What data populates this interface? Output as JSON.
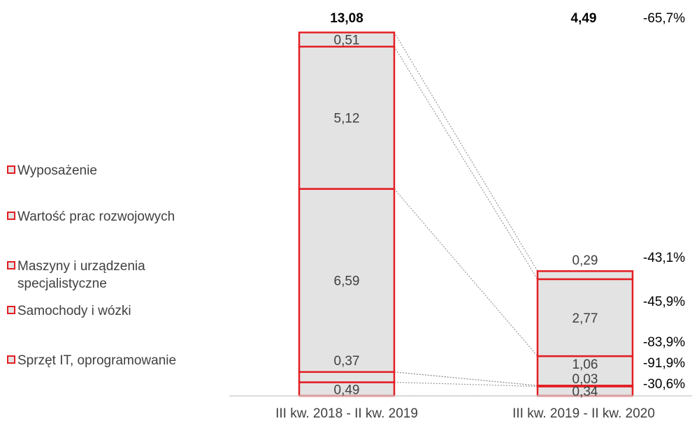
{
  "chart_data": {
    "type": "bar",
    "stacked": true,
    "categories": [
      "III kw. 2018 - II kw. 2019",
      "III kw. 2019 - II kw. 2020"
    ],
    "series": [
      {
        "name": "Sprzęt IT, oprogramowanie",
        "values": [
          0.49,
          0.34
        ],
        "labels": [
          "0,49",
          "0,34"
        ]
      },
      {
        "name": "Samochody i wózki",
        "values": [
          0.37,
          0.03
        ],
        "labels": [
          "0,37",
          "0,03"
        ]
      },
      {
        "name": "Maszyny i urządzenia specjalistyczne",
        "values": [
          6.59,
          1.06
        ],
        "labels": [
          "6,59",
          "1,06"
        ]
      },
      {
        "name": "Wartość prac rozwojowych",
        "values": [
          5.12,
          2.77
        ],
        "labels": [
          "5,12",
          "2,77"
        ]
      },
      {
        "name": "Wyposażenie",
        "values": [
          0.51,
          0.29
        ],
        "labels": [
          "0,51",
          "0,29"
        ]
      }
    ],
    "totals": [
      "13,08",
      "4,49"
    ],
    "changes": [
      "-65,7%",
      "-43,1%",
      "-45,9%",
      "-83,9%",
      "-91,9%",
      "-30,6%"
    ],
    "legend": [
      {
        "label": "Wyposażenie"
      },
      {
        "label": "Wartość prac rozwojowych"
      },
      {
        "label": "Maszyny i urządzenia",
        "label2": "specjalistyczne"
      },
      {
        "label": "Samochody i wózki"
      },
      {
        "label": "Sprzęt IT, oprogramowanie"
      }
    ],
    "legend_position": "left",
    "colors": {
      "fill": "#e3e3e3",
      "stroke": "#e31e24",
      "connector": "#999999",
      "axis": "#d0d0d0"
    },
    "grid": false
  }
}
